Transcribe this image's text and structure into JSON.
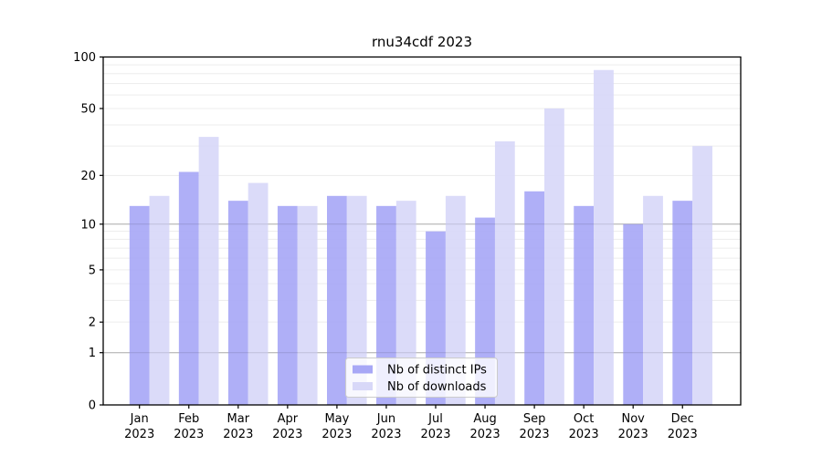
{
  "figure": {
    "title": "rnu34cdf 2023"
  },
  "chart_data": {
    "type": "bar",
    "title": "rnu34cdf 2023",
    "categories": [
      "Jan",
      "Feb",
      "Mar",
      "Apr",
      "May",
      "Jun",
      "Jul",
      "Aug",
      "Sep",
      "Oct",
      "Nov",
      "Dec"
    ],
    "category_year": "2023",
    "series": [
      {
        "name": "Nb of distinct IPs",
        "color": "#a8a8f6",
        "values": [
          13,
          21,
          14,
          13,
          15,
          13,
          9,
          11,
          16,
          13,
          10,
          14
        ]
      },
      {
        "name": "Nb of downloads",
        "color": "#d8d8f8",
        "values": [
          15,
          34,
          18,
          13,
          15,
          14,
          15,
          32,
          50,
          84,
          15,
          30
        ]
      }
    ],
    "xlabel": "",
    "ylabel": "",
    "y_scale": "log1p",
    "ylim": [
      0,
      100
    ],
    "y_ticks": [
      0,
      1,
      2,
      5,
      10,
      20,
      50,
      100
    ],
    "minor_gridlines": [
      2,
      3,
      4,
      5,
      6,
      7,
      8,
      9,
      20,
      30,
      40,
      50,
      60,
      70,
      80,
      90
    ],
    "major_gridlines": [
      1,
      10
    ],
    "grid": "on",
    "legend_position": "lower center",
    "colors": {
      "axis": "#000000",
      "minor_grid": "#ececec",
      "major_grid": "#c0c0c0",
      "background": "#ffffff"
    }
  }
}
